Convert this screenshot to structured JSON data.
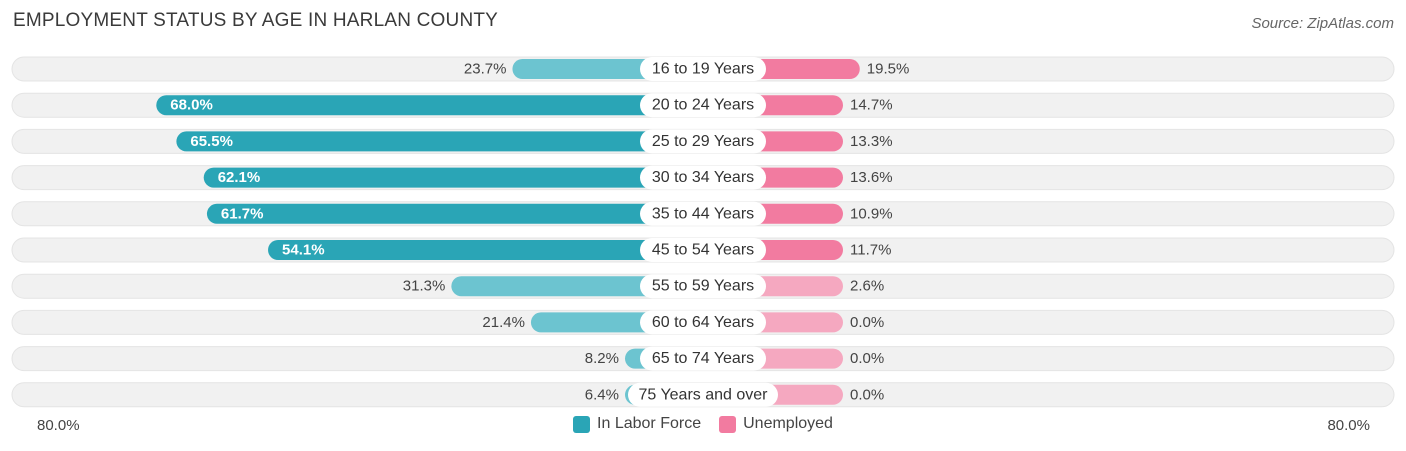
{
  "header": {
    "title": "EMPLOYMENT STATUS BY AGE IN HARLAN COUNTY",
    "source": "Source: ZipAtlas.com"
  },
  "axis": {
    "left_label": "80.0%",
    "right_label": "80.0%"
  },
  "legend": {
    "labor_force": "In Labor Force",
    "unemployed": "Unemployed"
  },
  "colors": {
    "labor_strong": "#2aa5b6",
    "labor_light": "#6cc4d0",
    "unemployed_strong": "#f27ba0",
    "unemployed_light": "#f5a8c0",
    "track": "#f1f1f1"
  },
  "chart_data": {
    "type": "bar",
    "orientation": "horizontal-diverging",
    "title": "EMPLOYMENT STATUS BY AGE IN HARLAN COUNTY",
    "categories": [
      "16 to 19 Years",
      "20 to 24 Years",
      "25 to 29 Years",
      "30 to 34 Years",
      "35 to 44 Years",
      "45 to 54 Years",
      "55 to 59 Years",
      "60 to 64 Years",
      "65 to 74 Years",
      "75 Years and over"
    ],
    "series": [
      {
        "name": "In Labor Force",
        "values": [
          23.7,
          68.0,
          65.5,
          62.1,
          61.7,
          54.1,
          31.3,
          21.4,
          8.2,
          6.4
        ],
        "labels": [
          "23.7%",
          "68.0%",
          "65.5%",
          "62.1%",
          "61.7%",
          "54.1%",
          "31.3%",
          "21.4%",
          "8.2%",
          "6.4%"
        ]
      },
      {
        "name": "Unemployed",
        "values": [
          19.5,
          14.7,
          13.3,
          13.6,
          10.9,
          11.7,
          2.6,
          0.0,
          0.0,
          0.0
        ],
        "labels": [
          "19.5%",
          "14.7%",
          "13.3%",
          "13.6%",
          "10.9%",
          "11.7%",
          "2.6%",
          "0.0%",
          "0.0%",
          "0.0%"
        ]
      }
    ],
    "xlim": [
      0,
      80
    ],
    "axis_labels": [
      "80.0%",
      "80.0%"
    ]
  }
}
